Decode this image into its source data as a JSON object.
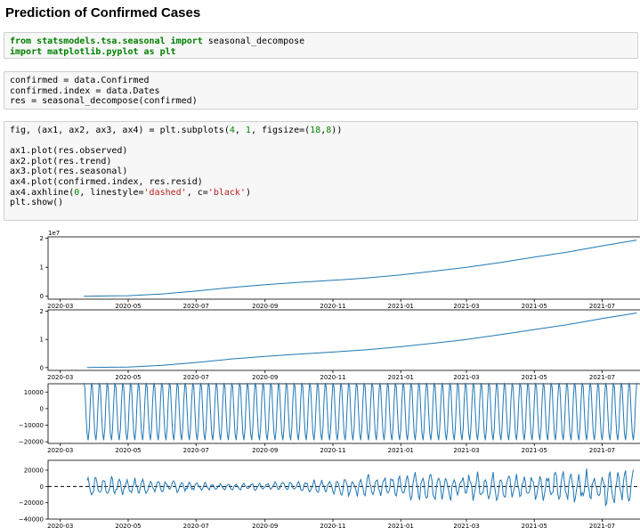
{
  "heading": "Prediction of Confirmed Cases",
  "cells": [
    {
      "lines": [
        [
          {
            "t": "from",
            "k": "kw"
          },
          {
            "t": " "
          },
          {
            "t": "statsmodels.tsa.seasonal",
            "k": "kw"
          },
          {
            "t": " "
          },
          {
            "t": "import",
            "k": "kw"
          },
          {
            "t": " seasonal_decompose"
          }
        ],
        [
          {
            "t": "import",
            "k": "kw"
          },
          {
            "t": " "
          },
          {
            "t": "matplotlib.pyplot",
            "k": "kw"
          },
          {
            "t": " "
          },
          {
            "t": "as",
            "k": "kw"
          },
          {
            "t": " "
          },
          {
            "t": "plt",
            "k": "kw"
          }
        ]
      ]
    },
    {
      "lines": [
        [
          {
            "t": "confirmed = data.Confirmed"
          }
        ],
        [
          {
            "t": "confirmed.index = data.Dates"
          }
        ],
        [
          {
            "t": "res = seasonal_decompose(confirmed)"
          }
        ]
      ]
    },
    {
      "lines": [
        [
          {
            "t": "fig, (ax1, ax2, ax3, ax4) = plt.subplots("
          },
          {
            "t": "4",
            "k": "num"
          },
          {
            "t": ", "
          },
          {
            "t": "1",
            "k": "num"
          },
          {
            "t": ", figsize=("
          },
          {
            "t": "18",
            "k": "num"
          },
          {
            "t": ","
          },
          {
            "t": "8",
            "k": "num"
          },
          {
            "t": "))"
          }
        ],
        [
          {
            "t": ""
          }
        ],
        [
          {
            "t": "ax1.plot(res.observed)"
          }
        ],
        [
          {
            "t": "ax2.plot(res.trend)"
          }
        ],
        [
          {
            "t": "ax3.plot(res.seasonal)"
          }
        ],
        [
          {
            "t": "ax4.plot(confirmed.index, res.resid)"
          }
        ],
        [
          {
            "t": "ax4.axhline("
          },
          {
            "t": "0",
            "k": "num"
          },
          {
            "t": ", linestyle="
          },
          {
            "t": "'dashed'",
            "k": "str"
          },
          {
            "t": ", c="
          },
          {
            "t": "'black'",
            "k": "str"
          },
          {
            "t": ")"
          }
        ],
        [
          {
            "t": "plt.show()"
          }
        ]
      ]
    }
  ],
  "colors": {
    "series": "#1f77b4",
    "zero_line": "#000000"
  },
  "chart_data": [
    {
      "type": "line",
      "name": "observed",
      "offset_label": "1e7",
      "x_ticks": [
        "2020-03",
        "2020-05",
        "2020-07",
        "2020-09",
        "2020-11",
        "2021-01",
        "2021-03",
        "2021-05",
        "2021-07"
      ],
      "y_ticks": [
        "0",
        "1",
        "2"
      ],
      "y_tick_values": [
        0,
        1,
        2
      ],
      "ylim": [
        -0.1,
        2.05
      ],
      "x": [
        "2020-03-22",
        "2020-05-01",
        "2020-06-01",
        "2020-07-01",
        "2020-08-01",
        "2020-09-01",
        "2020-10-01",
        "2020-11-01",
        "2020-12-01",
        "2021-01-01",
        "2021-02-01",
        "2021-03-01",
        "2021-04-01",
        "2021-05-01",
        "2021-06-01",
        "2021-07-01",
        "2021-08-01"
      ],
      "y": [
        0.0,
        0.02,
        0.08,
        0.18,
        0.3,
        0.4,
        0.48,
        0.55,
        0.63,
        0.74,
        0.87,
        1.0,
        1.17,
        1.35,
        1.53,
        1.74,
        1.94
      ]
    },
    {
      "type": "line",
      "name": "trend",
      "x_ticks": [
        "2020-03",
        "2020-05",
        "2020-07",
        "2020-09",
        "2020-11",
        "2021-01",
        "2021-03",
        "2021-05",
        "2021-07"
      ],
      "y_ticks": [
        "0",
        "1",
        "2"
      ],
      "y_tick_values": [
        0,
        1,
        2
      ],
      "ylim": [
        -0.1,
        2.05
      ],
      "x": [
        "2020-03-25",
        "2020-05-01",
        "2020-06-01",
        "2020-07-01",
        "2020-08-01",
        "2020-09-01",
        "2020-10-01",
        "2020-11-01",
        "2020-12-01",
        "2021-01-01",
        "2021-02-01",
        "2021-03-01",
        "2021-04-01",
        "2021-05-01",
        "2021-06-01",
        "2021-07-01",
        "2021-08-01"
      ],
      "y": [
        0.0,
        0.02,
        0.08,
        0.18,
        0.3,
        0.4,
        0.48,
        0.55,
        0.63,
        0.74,
        0.87,
        1.0,
        1.17,
        1.35,
        1.53,
        1.74,
        1.94
      ]
    },
    {
      "type": "line",
      "name": "seasonal",
      "period_days": 7,
      "x_ticks": [
        "2020-03",
        "2020-05",
        "2020-07",
        "2020-09",
        "2020-11",
        "2021-01",
        "2021-03",
        "2021-05",
        "2021-07"
      ],
      "y_ticks": [
        "10000",
        "0",
        "−10000",
        "−20000"
      ],
      "y_tick_values": [
        10000,
        0,
        -10000,
        -20000
      ],
      "ylim": [
        -21000,
        15000
      ],
      "x_range": [
        "2020-03-22",
        "2021-08-01"
      ],
      "pattern": [
        15500,
        13000,
        -2000,
        -15000,
        -19000,
        -12000,
        5000
      ]
    },
    {
      "type": "line",
      "name": "resid",
      "zero_line": 0,
      "x_ticks": [
        "2020-03",
        "2020-05",
        "2020-07",
        "2020-09",
        "2020-11",
        "2021-01",
        "2021-03",
        "2021-05",
        "2021-07"
      ],
      "y_ticks": [
        "20000",
        "0",
        "−20000",
        "−40000"
      ],
      "y_tick_values": [
        20000,
        0,
        -20000,
        -40000
      ],
      "ylim": [
        -40000,
        32000
      ],
      "x_range": [
        "2020-03-25",
        "2021-07-29"
      ],
      "amplitude_by_month": [
        {
          "month": "2020-03",
          "amp": 16000
        },
        {
          "month": "2020-06",
          "amp": 8000
        },
        {
          "month": "2020-08",
          "amp": 4000
        },
        {
          "month": "2020-10",
          "amp": 6000
        },
        {
          "month": "2020-12",
          "amp": 14000
        },
        {
          "month": "2021-02",
          "amp": 18000
        },
        {
          "month": "2021-05",
          "amp": 16000
        },
        {
          "month": "2021-07",
          "amp": 22000
        }
      ]
    }
  ]
}
